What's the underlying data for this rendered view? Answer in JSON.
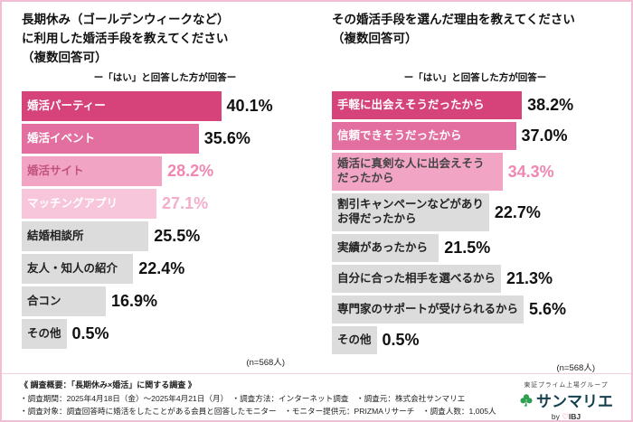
{
  "chart_data": [
    {
      "type": "bar",
      "orientation": "horizontal",
      "title": "長期休み（ゴールデンウィークなど）\nに利用した婚活手段を教えてください\n（複数回答可）",
      "subtitle": "ー「はい」と回答した方が回答ー",
      "n_label": "(n=568人)",
      "xlim": [
        0,
        45
      ],
      "bars": [
        {
          "label": "婚活パーティー",
          "value": 40.1,
          "value_label": "40.1%",
          "bar_color": "#d5437a",
          "label_color": "#ffffff",
          "value_color": "#111111"
        },
        {
          "label": "婚活イベント",
          "value": 35.6,
          "value_label": "35.6%",
          "bar_color": "#e36fa0",
          "label_color": "#ffffff",
          "value_color": "#111111"
        },
        {
          "label": "婚活サイト",
          "value": 28.2,
          "value_label": "28.2%",
          "bar_color": "#f2a4c4",
          "label_color": "#c2527e",
          "value_color": "#ee87b2"
        },
        {
          "label": "マッチングアプリ",
          "value": 27.1,
          "value_label": "27.1%",
          "bar_color": "#f7c6da",
          "label_color": "#ffffff",
          "value_color": "#f3aecb"
        },
        {
          "label": "結婚相談所",
          "value": 25.5,
          "value_label": "25.5%",
          "bar_color": "#dcdcdc",
          "label_color": "#222222",
          "value_color": "#111111"
        },
        {
          "label": "友人・知人の紹介",
          "value": 22.4,
          "value_label": "22.4%",
          "bar_color": "#dcdcdc",
          "label_color": "#222222",
          "value_color": "#111111"
        },
        {
          "label": "合コン",
          "value": 16.9,
          "value_label": "16.9%",
          "bar_color": "#dcdcdc",
          "label_color": "#222222",
          "value_color": "#111111"
        },
        {
          "label": "その他",
          "value": 0.5,
          "value_label": "0.5%",
          "bar_color": "#dcdcdc",
          "label_color": "#222222",
          "value_color": "#111111"
        }
      ]
    },
    {
      "type": "bar",
      "orientation": "horizontal",
      "title": "その婚活手段を選んだ理由を教えてください\n（複数回答可）",
      "subtitle": "ー「はい」と回答した方が回答ー",
      "n_label": "(n=568人)",
      "xlim": [
        0,
        45
      ],
      "bars": [
        {
          "label": "手軽に出会えそうだったから",
          "value": 38.2,
          "value_label": "38.2%",
          "bar_color": "#d5437a",
          "label_color": "#ffffff",
          "value_color": "#111111"
        },
        {
          "label": "信頼できそうだったから",
          "value": 37.0,
          "value_label": "37.0%",
          "bar_color": "#e36fa0",
          "label_color": "#ffffff",
          "value_color": "#111111"
        },
        {
          "label": "婚活に真剣な人に出会えそう\nだったから",
          "value": 34.3,
          "value_label": "34.3%",
          "bar_color": "#f2a4c4",
          "label_color": "#444444",
          "value_color": "#ee87b2"
        },
        {
          "label": "割引キャンペーンなどがあり\nお得だったから",
          "value": 22.7,
          "value_label": "22.7%",
          "bar_color": "#dcdcdc",
          "label_color": "#222222",
          "value_color": "#111111"
        },
        {
          "label": "実績があったから",
          "value": 21.5,
          "value_label": "21.5%",
          "bar_color": "#dcdcdc",
          "label_color": "#222222",
          "value_color": "#111111"
        },
        {
          "label": "自分に合った相手を選べるから",
          "value": 21.3,
          "value_label": "21.3%",
          "bar_color": "#dcdcdc",
          "label_color": "#222222",
          "value_color": "#111111"
        },
        {
          "label": "専門家のサポートが受けられるから",
          "value": 5.6,
          "value_label": "5.6%",
          "bar_color": "#dcdcdc",
          "label_color": "#222222",
          "value_color": "#111111"
        },
        {
          "label": "その他",
          "value": 0.5,
          "value_label": "0.5%",
          "bar_color": "#dcdcdc",
          "label_color": "#222222",
          "value_color": "#111111"
        }
      ]
    }
  ],
  "footer": {
    "lines": [
      "《 調査概要：「長期休み×婚活」に関する調査 》",
      "・調査期間：2025年4月18日（金）～2025年4月21日（月）　・調査方法：インターネット調査　・調査元：株式会社サンマリエ",
      "・調査対象：調査回答時に婚活をしたことがある会員と回答したモニター　・モニター提供元：PRIZMAリサーチ　・調査人数：1,005人"
    ]
  },
  "logo": {
    "group_text": "東証プライム上場グループ",
    "brand": "サンマリエ",
    "by_text": "by",
    "ibj_text": "IBJ"
  }
}
